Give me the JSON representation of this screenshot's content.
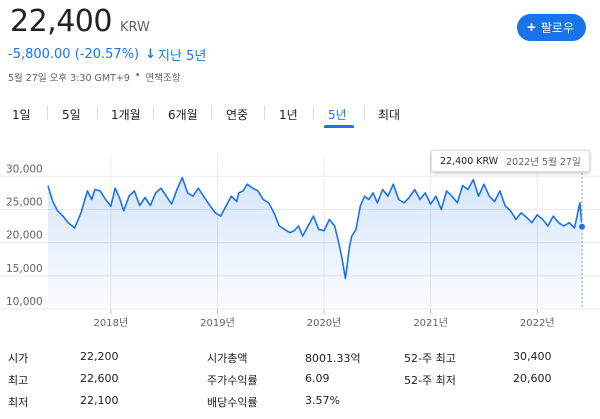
{
  "price": {
    "value": "22,400",
    "currency": "KRW"
  },
  "follow_button": {
    "label": "팔로우"
  },
  "change": {
    "text": "-5,800.00 (-20.57%)",
    "arrow": "↓",
    "period": "지난 5년"
  },
  "meta": {
    "timestamp": "5월 27일 오후 3:30 GMT+9",
    "separator": "•",
    "disclaimer": "면책조항"
  },
  "tabs": [
    {
      "label": "1일",
      "active": false
    },
    {
      "label": "5일",
      "active": false
    },
    {
      "label": "1개월",
      "active": false
    },
    {
      "label": "6개월",
      "active": false
    },
    {
      "label": "연중",
      "active": false
    },
    {
      "label": "1년",
      "active": false
    },
    {
      "label": "5년",
      "active": true
    },
    {
      "label": "최대",
      "active": false
    }
  ],
  "tooltip": {
    "value": "22,400 KRW",
    "date": "2022년 5월 27일"
  },
  "chart_data": {
    "type": "area",
    "title": "",
    "xlabel": "",
    "ylabel": "",
    "ylim": [
      10000,
      32000
    ],
    "yticks": [
      "30,000",
      "25,000",
      "20,000",
      "15,000",
      "10,000"
    ],
    "ytick_values": [
      30000,
      25000,
      20000,
      15000,
      10000
    ],
    "xticks": [
      "2018년",
      "2019년",
      "2020년",
      "2021년",
      "2022년"
    ],
    "xtick_values": [
      2018.0,
      2019.0,
      2020.0,
      2021.0,
      2022.0
    ],
    "xlim": [
      2017.41,
      2022.42
    ],
    "grid": true,
    "line_color": "#1a73e8",
    "series": [
      {
        "x": [
          2017.41,
          2017.43,
          2017.46,
          2017.5,
          2017.55,
          2017.6,
          2017.66,
          2017.72,
          2017.78,
          2017.82,
          2017.85,
          2017.9,
          2017.95,
          2018.0,
          2018.04,
          2018.08,
          2018.12,
          2018.17,
          2018.22,
          2018.27,
          2018.32,
          2018.37,
          2018.42,
          2018.47,
          2018.52,
          2018.57,
          2018.62,
          2018.67,
          2018.72,
          2018.77,
          2018.82,
          2018.87,
          2018.92,
          2018.98,
          2019.03,
          2019.08,
          2019.13,
          2019.18,
          2019.2,
          2019.24,
          2019.28,
          2019.33,
          2019.38,
          2019.43,
          2019.48,
          2019.53,
          2019.58,
          2019.63,
          2019.68,
          2019.72,
          2019.76,
          2019.8,
          2019.85,
          2019.9,
          2019.95,
          2020.0,
          2020.05,
          2020.1,
          2020.14,
          2020.17,
          2020.2,
          2020.22,
          2020.24,
          2020.26,
          2020.3,
          2020.34,
          2020.38,
          2020.42,
          2020.46,
          2020.5,
          2020.55,
          2020.6,
          2020.65,
          2020.7,
          2020.75,
          2020.8,
          2020.85,
          2020.9,
          2020.95,
          2021.0,
          2021.05,
          2021.1,
          2021.15,
          2021.2,
          2021.25,
          2021.3,
          2021.35,
          2021.4,
          2021.45,
          2021.5,
          2021.55,
          2021.6,
          2021.65,
          2021.7,
          2021.75,
          2021.8,
          2021.85,
          2021.9,
          2021.95,
          2022.0,
          2022.05,
          2022.1,
          2022.15,
          2022.2,
          2022.25,
          2022.3,
          2022.35,
          2022.4,
          2022.42
        ],
        "y": [
          28600,
          27500,
          26000,
          24800,
          24000,
          23000,
          22200,
          24500,
          27800,
          26500,
          28000,
          27800,
          26500,
          25500,
          28200,
          26800,
          24800,
          27000,
          27800,
          25600,
          26800,
          25600,
          27500,
          28200,
          27000,
          25800,
          28000,
          29800,
          27500,
          27000,
          28200,
          27000,
          25800,
          24500,
          24000,
          25500,
          27000,
          26200,
          27500,
          27800,
          28800,
          28200,
          27800,
          26500,
          26000,
          24500,
          22500,
          22000,
          21500,
          21800,
          22500,
          21000,
          22500,
          24000,
          22000,
          21800,
          23500,
          22500,
          19800,
          17500,
          14600,
          17000,
          19500,
          21000,
          22000,
          25500,
          27000,
          26500,
          27500,
          26000,
          28000,
          27000,
          28800,
          26500,
          26000,
          26800,
          28000,
          26500,
          27500,
          25800,
          27000,
          25000,
          27800,
          27000,
          26000,
          28600,
          28000,
          29500,
          27000,
          28800,
          27000,
          26200,
          27800,
          25500,
          24800,
          23500,
          24500,
          23800,
          23000,
          24200,
          23500,
          22500,
          24000,
          23000,
          22500,
          23000,
          22200,
          26000,
          22400
        ]
      }
    ],
    "last_value": 22400
  },
  "stats": {
    "rows": [
      [
        {
          "label": "시가",
          "value": "22,200"
        },
        {
          "label": "시가총액",
          "value": "8001.33억"
        },
        {
          "label": "52-주 최고",
          "value": "30,400"
        }
      ],
      [
        {
          "label": "최고",
          "value": "22,600"
        },
        {
          "label": "주가수익률",
          "value": "6.09"
        },
        {
          "label": "52-주 최저",
          "value": "20,600"
        }
      ],
      [
        {
          "label": "최저",
          "value": "22,100"
        },
        {
          "label": "배당수익률",
          "value": "3.57%"
        },
        {
          "label": "",
          "value": ""
        }
      ]
    ]
  }
}
